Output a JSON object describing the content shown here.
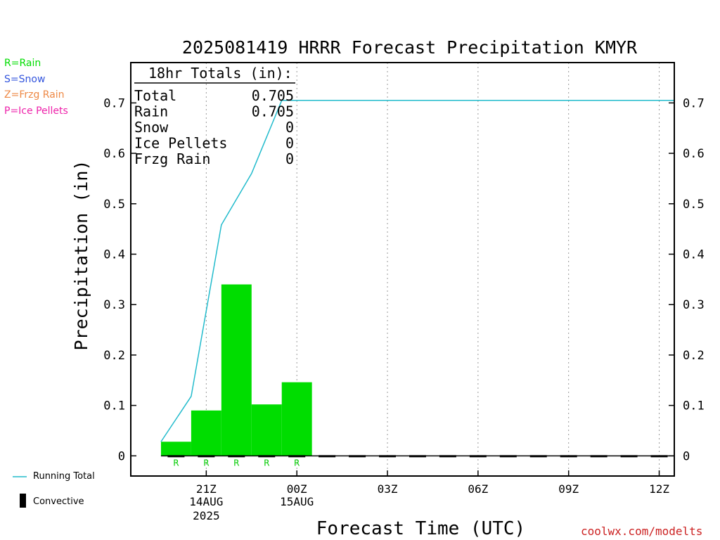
{
  "chart_data": {
    "type": "bar",
    "title": "2025081419 HRRR Forecast Precipitation KMYR",
    "xlabel": "Forecast Time (UTC)",
    "ylabel": "Precipitation (in)",
    "ylim": [
      -0.04,
      0.78
    ],
    "yticks": [
      0,
      0.1,
      0.2,
      0.3,
      0.4,
      0.5,
      0.6,
      0.7
    ],
    "ytick_labels": [
      "0",
      "0.1",
      "0.2",
      "0.3",
      "0.4",
      "0.5",
      "0.6",
      "0.7"
    ],
    "x_range_hours": [
      -0.5,
      17.5
    ],
    "x_ticks": [
      {
        "hour": 2,
        "label": "21Z",
        "date": "14AUG",
        "year": "2025"
      },
      {
        "hour": 5,
        "label": "00Z",
        "date": "15AUG",
        "year": ""
      },
      {
        "hour": 8,
        "label": "03Z",
        "date": "",
        "year": ""
      },
      {
        "hour": 11,
        "label": "06Z",
        "date": "",
        "year": ""
      },
      {
        "hour": 14,
        "label": "09Z",
        "date": "",
        "year": ""
      },
      {
        "hour": 17,
        "label": "12Z",
        "date": "",
        "year": ""
      }
    ],
    "grid": "vertical dotted",
    "bars": [
      {
        "hour": 1,
        "value": 0.028,
        "type": "R"
      },
      {
        "hour": 2,
        "value": 0.09,
        "type": "R"
      },
      {
        "hour": 3,
        "value": 0.34,
        "type": "R"
      },
      {
        "hour": 4,
        "value": 0.102,
        "type": "R"
      },
      {
        "hour": 5,
        "value": 0.146,
        "type": "R"
      }
    ],
    "running_total": {
      "name": "Running Total",
      "points": [
        {
          "hour": 0.5,
          "value": 0.028
        },
        {
          "hour": 1.5,
          "value": 0.118
        },
        {
          "hour": 2.5,
          "value": 0.458
        },
        {
          "hour": 3.5,
          "value": 0.56
        },
        {
          "hour": 4.5,
          "value": 0.705
        },
        {
          "hour": 17.5,
          "value": 0.705
        }
      ]
    },
    "convective_hours": [
      1,
      2,
      3,
      4,
      5,
      6,
      7,
      8,
      9,
      10,
      11,
      12,
      13,
      14,
      15,
      16,
      17
    ],
    "totals": {
      "header": "18hr Totals (in):",
      "rows": [
        {
          "label": "Total",
          "value": "0.705"
        },
        {
          "label": "Rain",
          "value": "0.705"
        },
        {
          "label": "Snow",
          "value": "0"
        },
        {
          "label": "Ice Pellets",
          "value": "0"
        },
        {
          "label": "Frzg Rain",
          "value": "0"
        }
      ]
    }
  },
  "type_legend": [
    {
      "text": "R=Rain",
      "color": "#00dd00"
    },
    {
      "text": "S=Snow",
      "color": "#3355dd"
    },
    {
      "text": "Z=Frzg Rain",
      "color": "#ee8844"
    },
    {
      "text": "P=Ice Pellets",
      "color": "#ee22aa"
    }
  ],
  "key": {
    "running_total": "Running Total",
    "convective": "Convective"
  },
  "credit": "coolwx.com/modelts",
  "colors": {
    "bar": "#00dd00",
    "line": "#22bbcc",
    "type_letter": "#00cc00",
    "credit": "#cc2222",
    "grid": "#999999"
  }
}
